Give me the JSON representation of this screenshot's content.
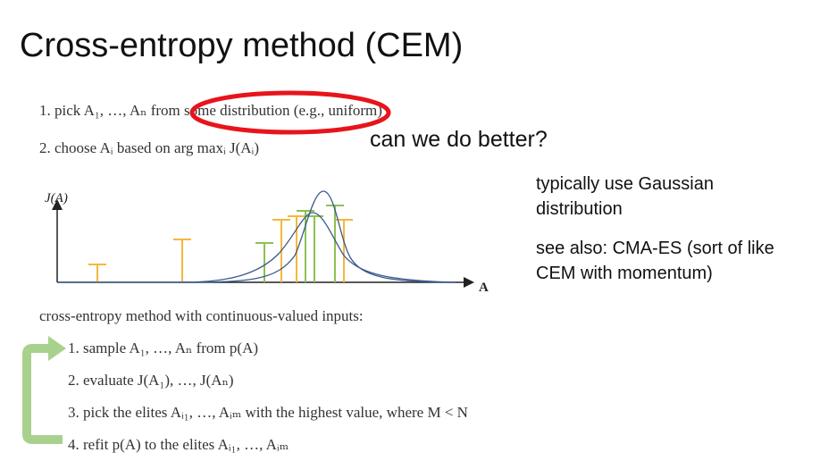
{
  "slide": {
    "title": "Cross-entropy method (CEM)",
    "top_steps": [
      "1. pick A₁, …, Aₙ from some distribution (e.g., uniform)",
      "2. choose Aᵢ based on arg maxᵢ J(Aᵢ)"
    ],
    "callout": "can we do better?",
    "side_notes": [
      "typically use Gaussian distribution",
      "see also: CMA-ES (sort of like CEM with momentum)"
    ],
    "chart_y_label": "J(A)",
    "chart_x_label": "A",
    "subheading": "cross-entropy method with continuous-valued inputs:",
    "bottom_steps": [
      "1. sample A₁, …, Aₙ from p(A)",
      "2. evaluate J(A₁), …, J(Aₙ)",
      "3. pick the elites Aᵢ₁, …, Aᵢₘ with the highest value, where M < N",
      "4. refit p(A) to the elites Aᵢ₁, …, Aᵢₘ"
    ],
    "colors": {
      "highlight_ellipse": "#e8141b",
      "sample_bars": "#f6b73c",
      "elite_bars": "#8cc152",
      "curves": "#3a5a8c",
      "loop_arrow": "#a9d18e"
    }
  }
}
